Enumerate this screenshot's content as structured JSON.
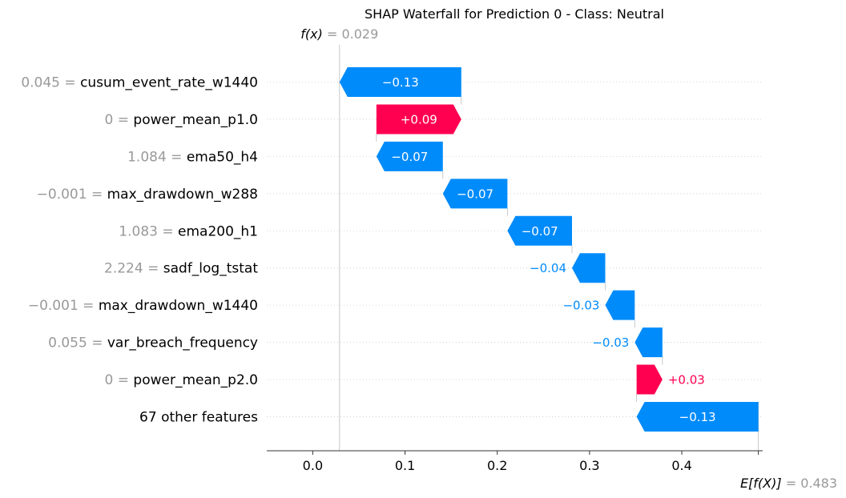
{
  "chart_data": {
    "type": "waterfall",
    "title": "SHAP Waterfall for Prediction 0 - Class: Neutral",
    "base_value": 0.483,
    "output_value": 0.029,
    "fx_label": "f(x)",
    "efx_label": "E[f(X)]",
    "fx_value_text": "= 0.029",
    "efx_value_text": "= 0.483",
    "xlim": [
      -0.05,
      0.5
    ],
    "x_ticks": [
      {
        "value": 0.0,
        "label": "0.0"
      },
      {
        "value": 0.1,
        "label": "0.1"
      },
      {
        "value": 0.2,
        "label": "0.2"
      },
      {
        "value": 0.3,
        "label": "0.3"
      },
      {
        "value": 0.4,
        "label": "0.4"
      }
    ],
    "features": [
      {
        "value_text": "0.045",
        "name": "cusum_event_rate_w1440",
        "start": 0.161,
        "end": 0.029,
        "label": "−0.13",
        "label_inside": true
      },
      {
        "value_text": "0",
        "name": "power_mean_p1.0",
        "start": 0.069,
        "end": 0.161,
        "label": "+0.09",
        "label_inside": true
      },
      {
        "value_text": "1.084",
        "name": "ema50_h4",
        "start": 0.141,
        "end": 0.069,
        "label": "−0.07",
        "label_inside": true
      },
      {
        "value_text": "−0.001",
        "name": "max_drawdown_w288",
        "start": 0.211,
        "end": 0.141,
        "label": "−0.07",
        "label_inside": true
      },
      {
        "value_text": "1.083",
        "name": "ema200_h1",
        "start": 0.281,
        "end": 0.211,
        "label": "−0.07",
        "label_inside": true
      },
      {
        "value_text": "2.224",
        "name": "sadf_log_tstat",
        "start": 0.317,
        "end": 0.281,
        "label": "−0.04",
        "label_inside": false
      },
      {
        "value_text": "−0.001",
        "name": "max_drawdown_w1440",
        "start": 0.349,
        "end": 0.317,
        "label": "−0.03",
        "label_inside": false
      },
      {
        "value_text": "0.055",
        "name": "var_breach_frequency",
        "start": 0.379,
        "end": 0.349,
        "label": "−0.03",
        "label_inside": false
      },
      {
        "value_text": "0",
        "name": "power_mean_p2.0",
        "start": 0.351,
        "end": 0.379,
        "label": "+0.03",
        "label_inside": false
      },
      {
        "value_text": "",
        "name": "67 other features",
        "start": 0.483,
        "end": 0.351,
        "label": "−0.13",
        "label_inside": true
      }
    ],
    "colors": {
      "positive": "#ff0051",
      "negative": "#008bfb",
      "value_gray": "#999999",
      "grid": "#cccccc"
    }
  }
}
